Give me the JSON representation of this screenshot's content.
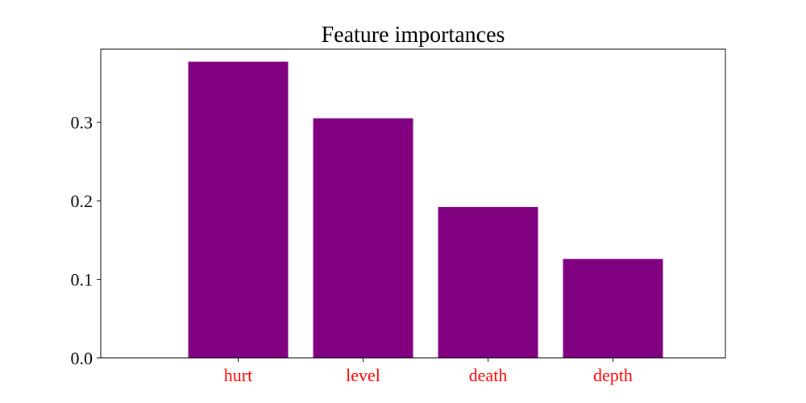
{
  "chart_data": {
    "type": "bar",
    "title": "Feature importances",
    "xlabel": "",
    "ylabel": "",
    "categories": [
      "hurt",
      "level",
      "death",
      "depth"
    ],
    "values": [
      0.377,
      0.305,
      0.192,
      0.126
    ],
    "ylim": [
      0,
      0.393
    ],
    "xlim": [
      -1.1,
      3.9
    ],
    "yticks": [
      0.0,
      0.1,
      0.2,
      0.3
    ],
    "ytick_labels": [
      "0.0",
      "0.1",
      "0.2",
      "0.3"
    ],
    "bar_width": 0.8,
    "grid": false,
    "legend": "none",
    "bar_color": "#800080",
    "xtick_label_color": "#ff0000",
    "axis_color": "#000000"
  }
}
